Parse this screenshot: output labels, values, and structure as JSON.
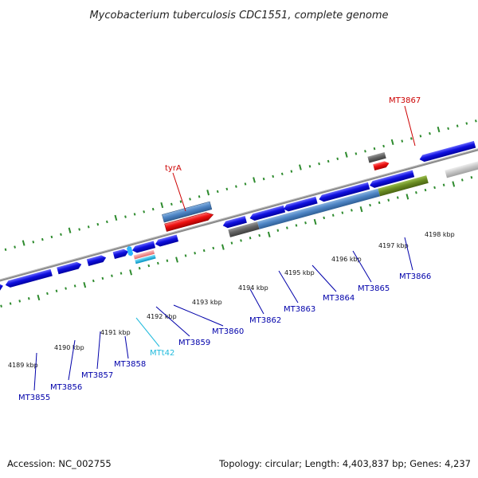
{
  "title": "Mycobacterium tuberculosis CDC1551, complete genome",
  "footer": {
    "accession": "Accession: NC_002755",
    "summary": "Topology: circular; Length: 4,403,837 bp; Genes: 4,237"
  },
  "colors": {
    "backbone": "#8a8a8a",
    "tick": "#2e8b2e",
    "gene_blue": "#1010e0",
    "gene_steel": "#4f86c6",
    "gene_red": "#ee1111",
    "gene_gray": "#666666",
    "gene_olive": "#6b8e23",
    "gene_lightgray": "#c8c8c8",
    "rna_pink": "#f08a8a",
    "rna_cyan": "#00b8e6",
    "label_blue": "#0000aa",
    "label_red": "#cc0000",
    "label_cyan": "#22bbdd"
  },
  "kbp_labels": [
    "4189 kbp",
    "4190 kbp",
    "4191 kbp",
    "4192 kbp",
    "4193 kbp",
    "4194 kbp",
    "4195 kbp",
    "4196 kbp",
    "4197 kbp",
    "4198 kbp"
  ],
  "gene_labels": {
    "MT3855": "MT3855",
    "MT3856": "MT3856",
    "MT3857": "MT3857",
    "MT3858": "MT3858",
    "MTt42": "MTt42",
    "MT3859": "MT3859",
    "MT3860": "MT3860",
    "MT3862": "MT3862",
    "MT3863": "MT3863",
    "MT3864": "MT3864",
    "MT3865": "MT3865",
    "MT3866": "MT3866",
    "MT3867": "MT3867",
    "tyrA": "tyrA"
  }
}
